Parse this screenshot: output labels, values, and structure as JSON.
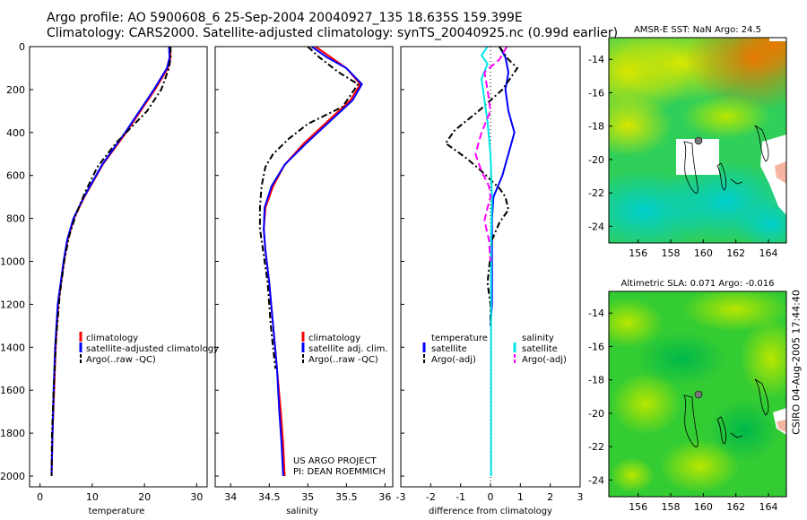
{
  "header": {
    "line1": "Argo profile: AO 5900608_6 25-Sep-2004 20040927_135 18.635S 159.399E",
    "line2": "Climatology: CARS2000. Satellite-adjusted climatology: synTS_20040925.nc (0.99d earlier)"
  },
  "credit": "CSIRO 04-Aug-2005 17:44:40",
  "chart_data": [
    {
      "type": "line",
      "id": "temp",
      "xlabel": "temperature",
      "ylabel": "",
      "xlim": [
        -2,
        32
      ],
      "ylim": [
        2050,
        0
      ],
      "xticks": [
        0,
        10,
        20,
        30
      ],
      "yticks": [
        0,
        200,
        400,
        600,
        800,
        1000,
        1200,
        1400,
        1600,
        1800,
        2000
      ],
      "legend": [
        "climatology",
        "satellite-adjusted climatology",
        "Argo(..raw -QC)"
      ],
      "series": [
        {
          "name": "climatology",
          "color": "#ff0000",
          "dash": "",
          "points": [
            [
              24.9,
              0
            ],
            [
              25.0,
              50
            ],
            [
              24.5,
              100
            ],
            [
              22.0,
              200
            ],
            [
              16.5,
              400
            ],
            [
              12.0,
              550
            ],
            [
              8.5,
              700
            ],
            [
              6.5,
              800
            ],
            [
              5.3,
              900
            ],
            [
              4.6,
              1000
            ],
            [
              3.5,
              1200
            ],
            [
              3.0,
              1400
            ],
            [
              2.7,
              1600
            ],
            [
              2.4,
              1800
            ],
            [
              2.2,
              2000
            ]
          ]
        },
        {
          "name": "satellite-adjusted climatology",
          "color": "#0000ff",
          "dash": "",
          "points": [
            [
              24.7,
              0
            ],
            [
              24.8,
              50
            ],
            [
              24.3,
              100
            ],
            [
              21.8,
              200
            ],
            [
              16.3,
              400
            ],
            [
              11.9,
              550
            ],
            [
              8.4,
              700
            ],
            [
              6.4,
              800
            ],
            [
              5.2,
              900
            ],
            [
              4.5,
              1000
            ],
            [
              3.4,
              1200
            ],
            [
              2.9,
              1400
            ],
            [
              2.6,
              1600
            ],
            [
              2.4,
              1800
            ],
            [
              2.2,
              2000
            ]
          ]
        },
        {
          "name": "Argo(..raw -QC)",
          "color": "#000000",
          "dash": "7,3,2,3",
          "points": [
            [
              25.0,
              0
            ],
            [
              25.0,
              50
            ],
            [
              24.7,
              100
            ],
            [
              23.2,
              200
            ],
            [
              20.5,
              300
            ],
            [
              14.5,
              450
            ],
            [
              11.0,
              560
            ],
            [
              8.6,
              680
            ],
            [
              6.9,
              780
            ],
            [
              5.6,
              880
            ],
            [
              4.7,
              990
            ],
            [
              3.8,
              1150
            ],
            [
              3.1,
              1350
            ],
            [
              2.6,
              1600
            ],
            [
              2.3,
              1800
            ],
            [
              2.2,
              2000
            ]
          ]
        }
      ],
      "annotations": []
    },
    {
      "type": "line",
      "id": "salt",
      "xlabel": "salinity",
      "ylabel": "",
      "xlim": [
        33.8,
        36.1
      ],
      "ylim": [
        2050,
        0
      ],
      "xticks": [
        34,
        34.5,
        35,
        35.5,
        36
      ],
      "yticks": [
        0,
        200,
        400,
        600,
        800,
        1000,
        1200,
        1400,
        1600,
        1800,
        2000
      ],
      "legend": [
        "climatology",
        "satellite adj. clim.",
        "Argo(..raw -QC)"
      ],
      "series": [
        {
          "name": "climatology",
          "color": "#ff0000",
          "dash": "",
          "points": [
            [
              35.1,
              0
            ],
            [
              35.3,
              50
            ],
            [
              35.5,
              100
            ],
            [
              35.68,
              175
            ],
            [
              35.55,
              250
            ],
            [
              35.25,
              350
            ],
            [
              34.95,
              450
            ],
            [
              34.7,
              550
            ],
            [
              34.55,
              650
            ],
            [
              34.45,
              750
            ],
            [
              34.43,
              850
            ],
            [
              34.45,
              950
            ],
            [
              34.5,
              1100
            ],
            [
              34.55,
              1300
            ],
            [
              34.6,
              1500
            ],
            [
              34.65,
              1700
            ],
            [
              34.68,
              1850
            ],
            [
              34.7,
              2000
            ]
          ]
        },
        {
          "name": "satellite adj. clim.",
          "color": "#0000ff",
          "dash": "",
          "points": [
            [
              35.05,
              0
            ],
            [
              35.25,
              50
            ],
            [
              35.5,
              100
            ],
            [
              35.7,
              175
            ],
            [
              35.58,
              250
            ],
            [
              35.28,
              350
            ],
            [
              34.98,
              450
            ],
            [
              34.7,
              550
            ],
            [
              34.53,
              650
            ],
            [
              34.44,
              750
            ],
            [
              34.43,
              850
            ],
            [
              34.45,
              950
            ],
            [
              34.5,
              1100
            ],
            [
              34.55,
              1300
            ],
            [
              34.6,
              1500
            ],
            [
              34.63,
              1700
            ],
            [
              34.66,
              1850
            ],
            [
              34.68,
              2000
            ]
          ]
        },
        {
          "name": "Argo(..raw -QC)",
          "color": "#000000",
          "dash": "7,3,2,3",
          "points": [
            [
              35.0,
              0
            ],
            [
              35.15,
              50
            ],
            [
              35.4,
              120
            ],
            [
              35.65,
              175
            ],
            [
              35.45,
              280
            ],
            [
              35.0,
              360
            ],
            [
              34.75,
              430
            ],
            [
              34.55,
              500
            ],
            [
              34.45,
              560
            ],
            [
              34.4,
              650
            ],
            [
              34.38,
              750
            ],
            [
              34.38,
              850
            ],
            [
              34.42,
              950
            ],
            [
              34.48,
              1100
            ],
            [
              34.52,
              1300
            ],
            [
              34.58,
              1500
            ]
          ]
        }
      ],
      "annotations": [
        "US ARGO PROJECT",
        "PI: DEAN ROEMMICH"
      ]
    },
    {
      "type": "line",
      "id": "diff",
      "xlabel": "difference from climatology",
      "ylabel": "",
      "xlim": [
        -3,
        3
      ],
      "ylim": [
        2050,
        0
      ],
      "xticks": [
        -3,
        -2,
        -1,
        0,
        1,
        2,
        3
      ],
      "yticks": [
        0,
        200,
        400,
        600,
        800,
        1000,
        1200,
        1400,
        1600,
        1800,
        2000
      ],
      "legend_left": [
        "temperature",
        "satellite",
        "Argo(-adj)"
      ],
      "legend_right": [
        "salinity",
        "satellite",
        "Argo(-adj)"
      ],
      "series": [
        {
          "name": "temperature satellite",
          "color": "#0000ff",
          "dash": "",
          "points": [
            [
              0.3,
              0
            ],
            [
              0.5,
              50
            ],
            [
              0.6,
              120
            ],
            [
              0.5,
              200
            ],
            [
              0.6,
              300
            ],
            [
              0.8,
              400
            ],
            [
              0.6,
              500
            ],
            [
              0.4,
              600
            ],
            [
              0.1,
              700
            ],
            [
              0.05,
              800
            ],
            [
              0.05,
              1000
            ],
            [
              0.05,
              1200
            ],
            [
              0.0,
              1300
            ]
          ]
        },
        {
          "name": "temperature Argo(-adj)",
          "color": "#000000",
          "dash": "7,3,2,3",
          "points": [
            [
              0.3,
              0
            ],
            [
              0.6,
              60
            ],
            [
              0.9,
              100
            ],
            [
              0.4,
              200
            ],
            [
              -0.4,
              300
            ],
            [
              -1.2,
              390
            ],
            [
              -1.5,
              450
            ],
            [
              -0.8,
              520
            ],
            [
              -0.3,
              580
            ],
            [
              0.3,
              660
            ],
            [
              0.5,
              700
            ],
            [
              0.6,
              760
            ],
            [
              0.3,
              820
            ],
            [
              0.05,
              900
            ],
            [
              -0.1,
              1100
            ],
            [
              0.0,
              1200
            ],
            [
              0.0,
              1300
            ]
          ]
        },
        {
          "name": "salinity satellite",
          "color": "#00e5e5",
          "dash": "",
          "points": [
            [
              -0.1,
              0
            ],
            [
              -0.3,
              40
            ],
            [
              -0.1,
              80
            ],
            [
              -0.3,
              150
            ],
            [
              -0.2,
              250
            ],
            [
              -0.1,
              350
            ],
            [
              0.0,
              500
            ],
            [
              0.05,
              700
            ],
            [
              0.02,
              900
            ],
            [
              0.02,
              1200
            ],
            [
              0.02,
              1600
            ],
            [
              0.02,
              2000
            ]
          ]
        },
        {
          "name": "salinity Argo(-adj)",
          "color": "#ff00ff",
          "dash": "8,4",
          "points": [
            [
              0.55,
              0
            ],
            [
              0.3,
              60
            ],
            [
              -0.2,
              120
            ],
            [
              -0.1,
              200
            ],
            [
              0.0,
              300
            ],
            [
              -0.3,
              400
            ],
            [
              -0.5,
              500
            ],
            [
              -0.3,
              580
            ],
            [
              -0.05,
              650
            ],
            [
              0.0,
              700
            ],
            [
              -0.1,
              750
            ],
            [
              -0.2,
              810
            ],
            [
              -0.05,
              900
            ],
            [
              0.0,
              1000
            ]
          ]
        }
      ],
      "annotations": []
    },
    {
      "type": "heatmap",
      "id": "sst",
      "title": "AMSR-E SST: NaN Argo: 24.5",
      "xlim": [
        154.2,
        165.1
      ],
      "ylim": [
        -25,
        -12.7
      ],
      "xticks": [
        156,
        158,
        160,
        162,
        164
      ],
      "yticks": [
        -14,
        -16,
        -18,
        -20,
        -22,
        -24
      ],
      "argo_position": [
        159.4,
        -18.6
      ]
    },
    {
      "type": "heatmap",
      "id": "sla",
      "title": "Altimetric SLA: 0.071 Argo: -0.016",
      "xlim": [
        154.2,
        165.1
      ],
      "ylim": [
        -25,
        -12.7
      ],
      "xticks": [
        156,
        158,
        160,
        162,
        164
      ],
      "yticks": [
        -14,
        -16,
        -18,
        -20,
        -22,
        -24
      ],
      "argo_position": [
        159.4,
        -18.6
      ]
    }
  ]
}
